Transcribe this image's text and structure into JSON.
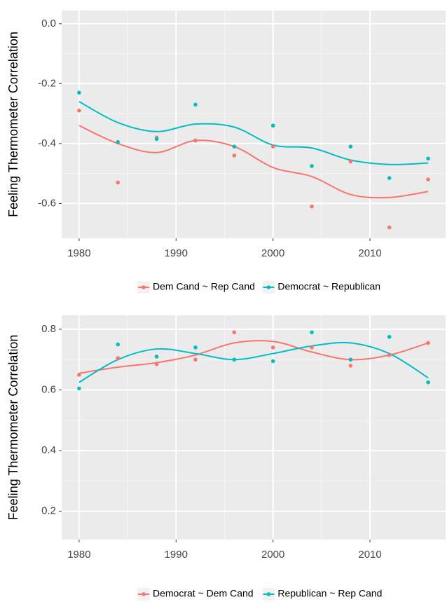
{
  "chart_data": [
    {
      "type": "scatter-smooth",
      "y_label": "Feeling Thermometer Correlation",
      "x": [
        1980,
        1984,
        1988,
        1992,
        1996,
        2000,
        2004,
        2008,
        2012,
        2016
      ],
      "xlim": [
        1978.2,
        2017.8
      ],
      "xticks": [
        1980,
        1990,
        2000,
        2010
      ],
      "ylim": [
        -0.716,
        0.044
      ],
      "yticks": [
        {
          "value": 0,
          "label": "0.0"
        },
        -0.2,
        -0.4,
        -0.6
      ],
      "grid": true,
      "legend": "bottom",
      "series": [
        {
          "name": "Dem Cand ~ Rep Cand",
          "color": "#f8766d",
          "values": [
            -0.29,
            -0.53,
            -0.38,
            -0.39,
            -0.44,
            -0.41,
            -0.61,
            -0.46,
            -0.68,
            -0.52
          ],
          "smooth": [
            -0.34,
            -0.4,
            -0.43,
            -0.39,
            -0.41,
            -0.48,
            -0.51,
            -0.57,
            -0.58,
            -0.56
          ]
        },
        {
          "name": "Democrat ~ Republican",
          "color": "#00bfc4",
          "values": [
            -0.23,
            -0.395,
            -0.385,
            -0.27,
            -0.41,
            -0.34,
            -0.475,
            -0.41,
            -0.515,
            -0.45
          ],
          "smooth": [
            -0.26,
            -0.33,
            -0.36,
            -0.335,
            -0.345,
            -0.405,
            -0.415,
            -0.455,
            -0.47,
            -0.465
          ]
        }
      ]
    },
    {
      "type": "scatter-smooth",
      "y_label": "Feeling Thermometer Correlation",
      "x": [
        1980,
        1984,
        1988,
        1992,
        1996,
        2000,
        2004,
        2008,
        2012,
        2016
      ],
      "xlim": [
        1978.2,
        2017.8
      ],
      "xticks": [
        1980,
        1990,
        2000,
        2010
      ],
      "ylim": [
        0.107,
        0.846
      ],
      "yticks": [
        0.8,
        0.6,
        0.4,
        0.2
      ],
      "grid": true,
      "legend": "bottom",
      "series": [
        {
          "name": "Democrat ~ Dem Cand",
          "color": "#f8766d",
          "values": [
            0.65,
            0.705,
            0.685,
            0.7,
            0.79,
            0.74,
            0.74,
            0.68,
            0.715,
            0.755
          ],
          "smooth": [
            0.655,
            0.675,
            0.69,
            0.715,
            0.755,
            0.76,
            0.725,
            0.7,
            0.715,
            0.755
          ]
        },
        {
          "name": "Republican ~ Rep Cand",
          "color": "#00bfc4",
          "values": [
            0.605,
            0.75,
            0.71,
            0.74,
            0.7,
            0.695,
            0.79,
            0.7,
            0.775,
            0.625
          ],
          "smooth": [
            0.625,
            0.7,
            0.735,
            0.72,
            0.7,
            0.72,
            0.745,
            0.755,
            0.72,
            0.64
          ]
        }
      ]
    }
  ]
}
